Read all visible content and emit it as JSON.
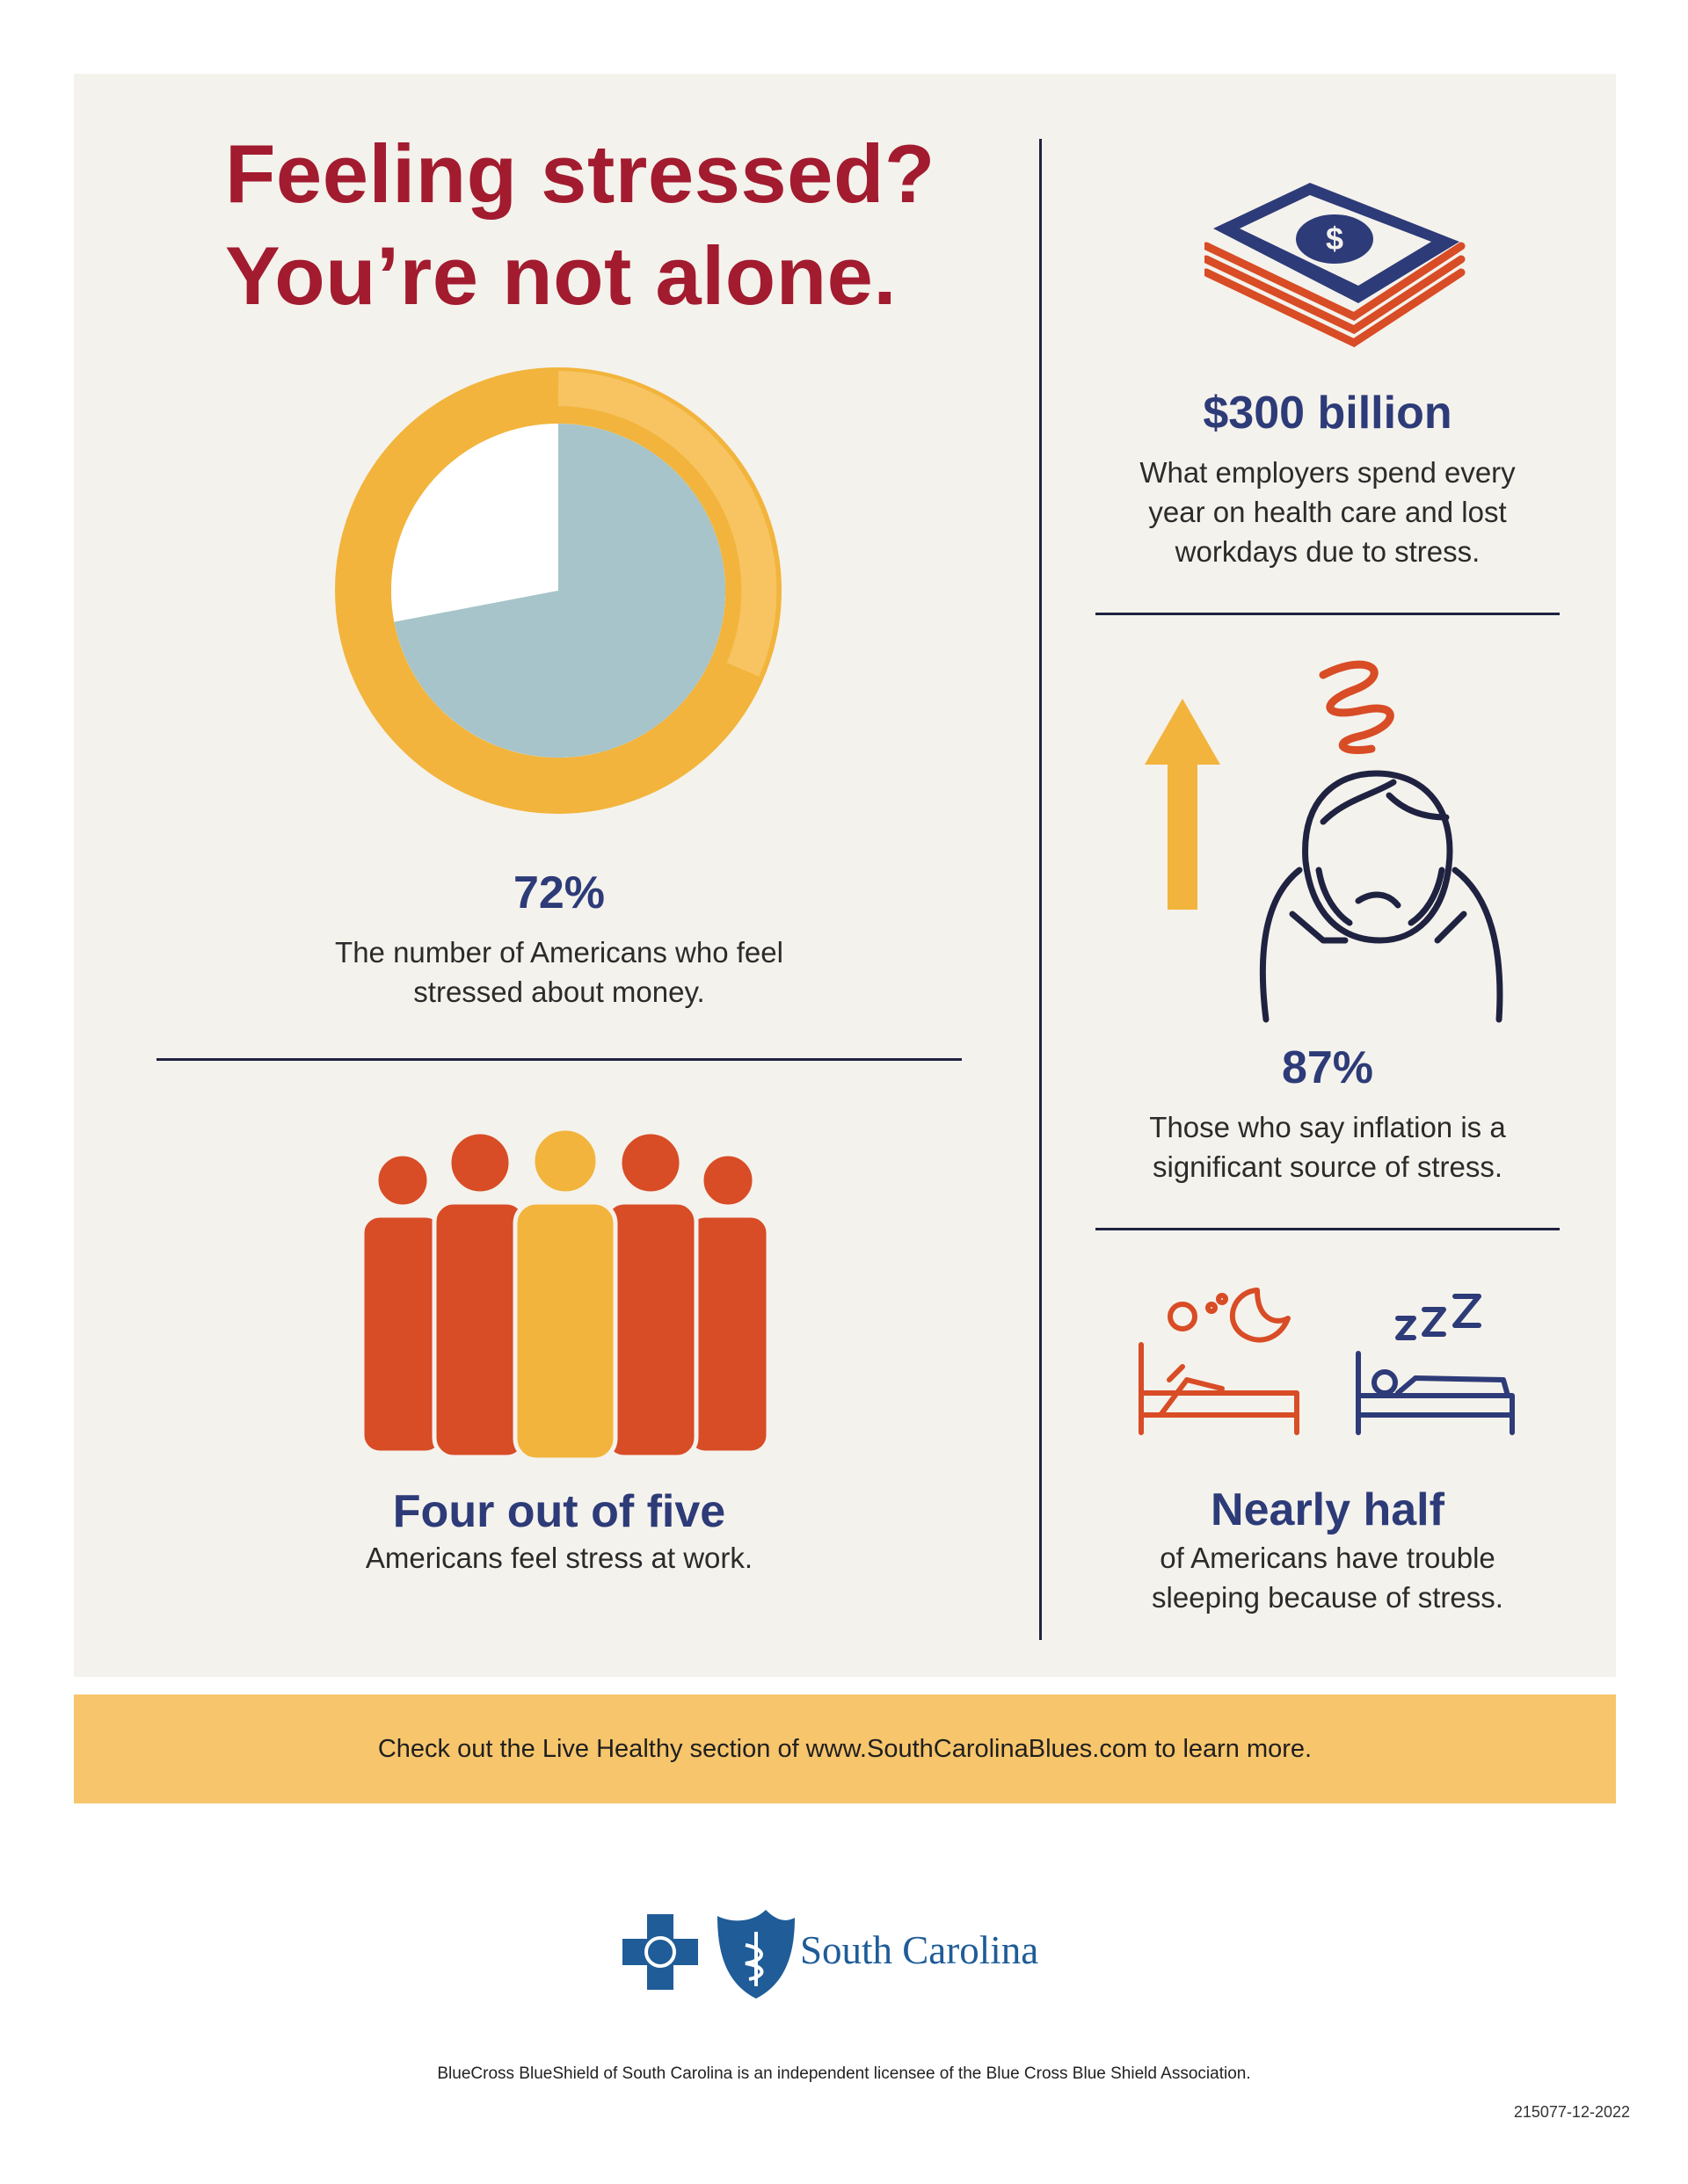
{
  "title": {
    "line1": "Feeling stressed?",
    "line2": "You’re not alone."
  },
  "colors": {
    "title_red": "#a21b2f",
    "stat_navy": "#2d3b78",
    "orange": "#d84c26",
    "yellow": "#f2b43c",
    "light_blue": "#a6c4c9",
    "banner": "#f7c56c",
    "brand_blue": "#1f5c98"
  },
  "stats": {
    "money": {
      "value": "72%",
      "percent": 72,
      "desc_line1": "The number of Americans who feel",
      "desc_line2": "stressed about money.",
      "icon": "pie-chart-icon"
    },
    "work": {
      "value": "Four out of five",
      "desc_line1": "Americans feel stress at work.",
      "icon": "group-of-people-icon"
    },
    "employers": {
      "value": "$300 billion",
      "desc_line1": "What employers spend every",
      "desc_line2": "year on health care and lost",
      "desc_line3": "workdays due to stress.",
      "icon": "money-stack-icon"
    },
    "inflation": {
      "value": "87%",
      "desc_line1": "Those who say inflation is a",
      "desc_line2": "significant source of stress.",
      "icon": "stressed-person-icon"
    },
    "sleep": {
      "value": "Nearly half",
      "desc_line1": "of Americans have trouble",
      "desc_line2": "sleeping because of stress.",
      "icon": "sleeping-bed-icon"
    }
  },
  "cta": {
    "text": "Check out the Live Healthy section of www.SouthCarolinaBlues.com to learn more."
  },
  "brand": {
    "name": "South Carolina",
    "logo_icon": "bluecross-blueshield-logo"
  },
  "disclaimer": "BlueCross BlueShield of South Carolina is an independent licensee of the Blue Cross Blue Shield Association.",
  "doc_code": "215077-12-2022"
}
